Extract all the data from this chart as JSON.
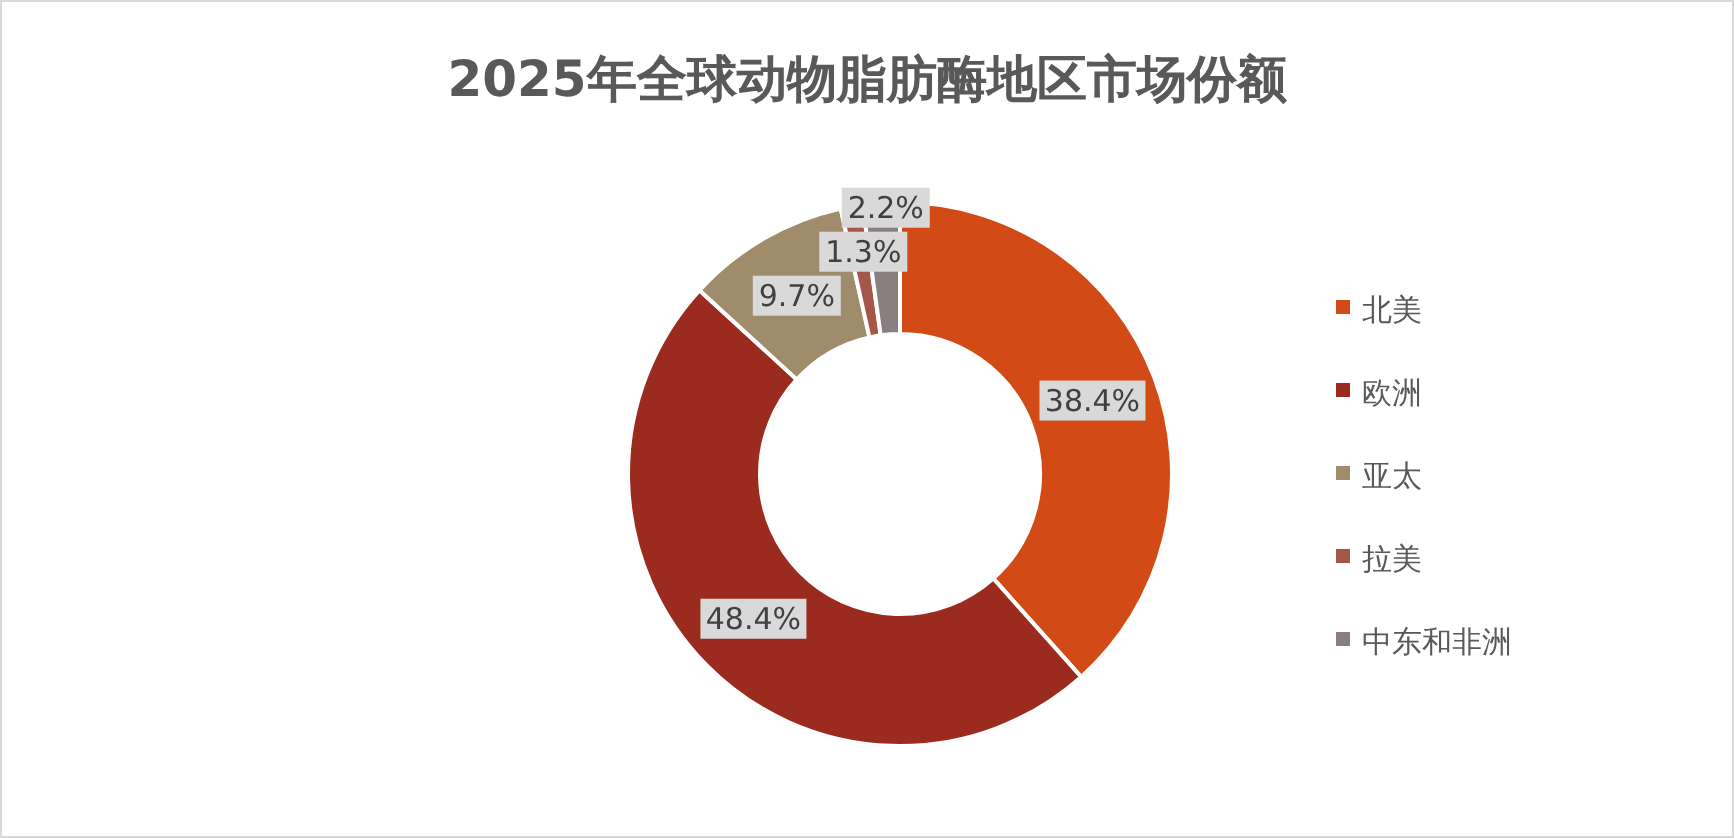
{
  "chart_data": {
    "type": "donut",
    "title": "2025年全球动物脂肪酶地区市场份额",
    "categories": [
      "北美",
      "欧洲",
      "亚太",
      "拉美",
      "中东和非洲"
    ],
    "values": [
      38.4,
      48.4,
      9.7,
      1.3,
      2.2
    ],
    "value_labels": [
      "38.4%",
      "48.4%",
      "9.7%",
      "1.3%",
      "2.2%"
    ],
    "colors": [
      "#d24a16",
      "#9c2b1f",
      "#a08c6a",
      "#a45648",
      "#8a7f80"
    ],
    "legend": "right"
  }
}
